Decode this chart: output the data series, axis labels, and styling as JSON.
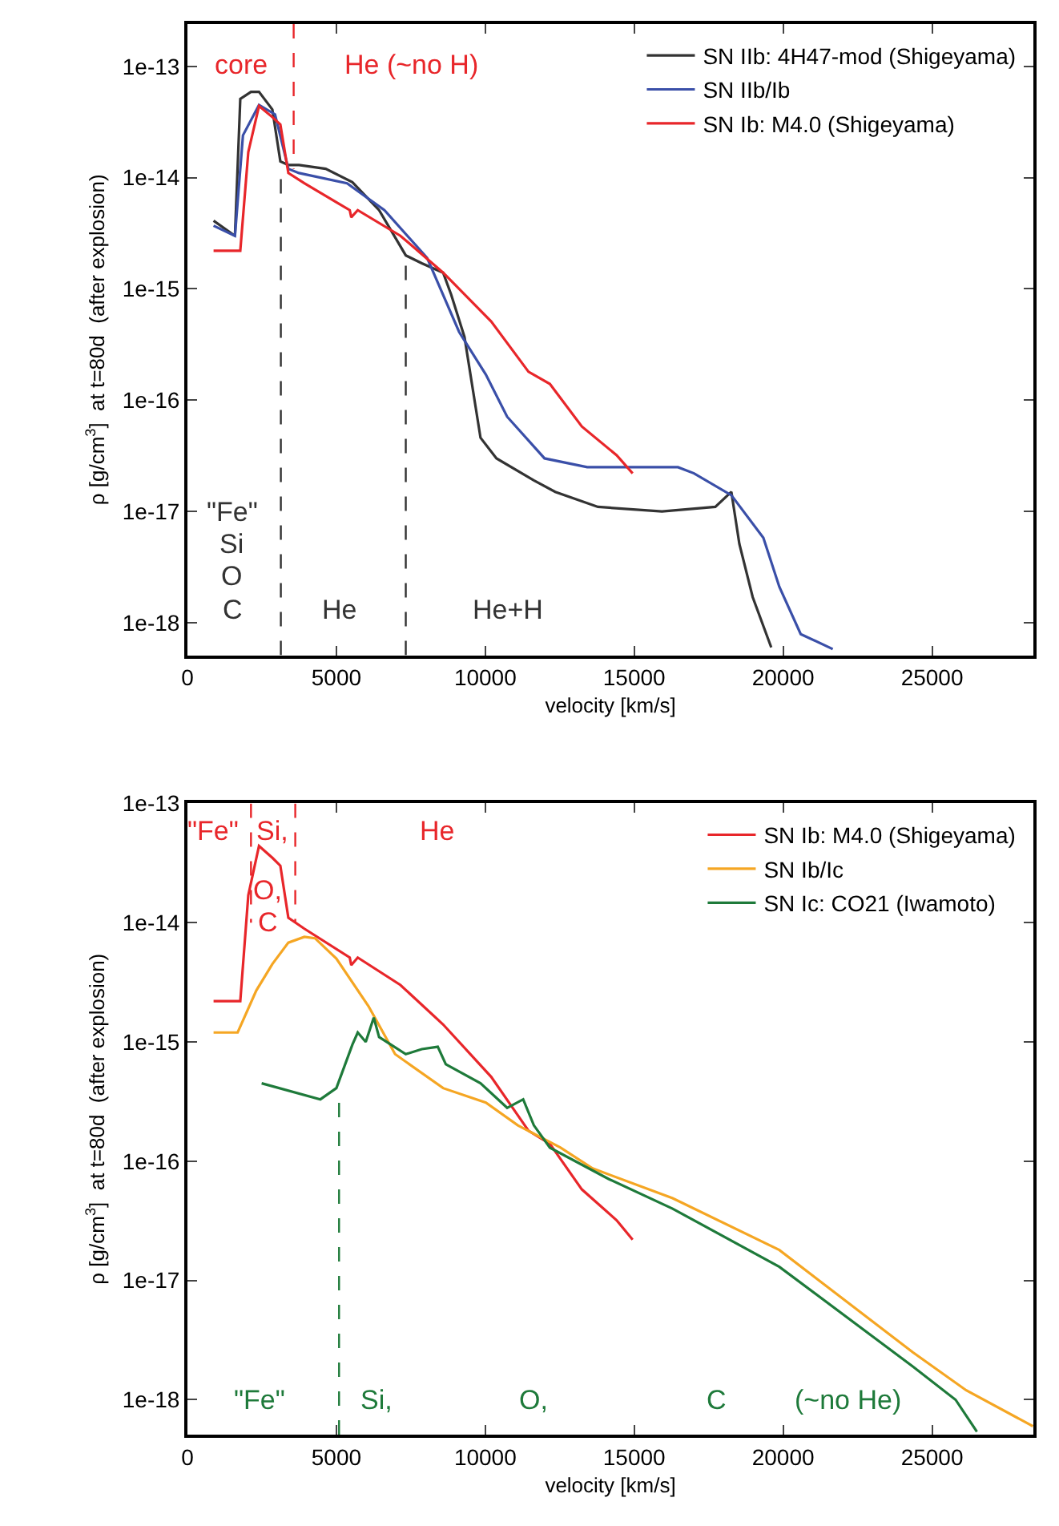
{
  "chart_data": [
    {
      "type": "line",
      "xlabel": "velocity [km/s]",
      "ylabel": "ρ [g/cm$^{3}$]  at t=80d  (after explosion)",
      "log": "y",
      "xlim": [
        0,
        28400
      ],
      "ylim": [
        5.1e-19,
        2.4e-13
      ],
      "xticks": [
        0,
        5000,
        10000,
        15000,
        20000,
        25000
      ],
      "yticks": [
        {
          "value": 1e-18,
          "label": "1e-18"
        },
        {
          "value": 1e-17,
          "label": "1e-17"
        },
        {
          "value": 1e-16,
          "label": "1e-16"
        },
        {
          "value": 1e-15,
          "label": "1e-15"
        },
        {
          "value": 1e-14,
          "label": "1e-14"
        },
        {
          "value": 1e-13,
          "label": "1e-13"
        }
      ],
      "legend": "top right",
      "marker": "none",
      "line_style": "solid",
      "series": [
        {
          "name": "SN IIb: 4H47-mod (Shigeyama)",
          "color": "#333333",
          "x": [
            877,
            1595,
            1774,
            2133,
            2402,
            2850,
            3119,
            3387,
            3745,
            4642,
            5538,
            6434,
            7330,
            7868,
            8584,
            8853,
            9301,
            9839,
            10376,
            11630,
            12348,
            13781,
            15930,
            17722,
            18261,
            18530,
            18977,
            19600
          ],
          "values": [
            4.1e-15,
            3e-15,
            5.1e-14,
            5.9e-14,
            5.9e-14,
            4.1e-14,
            1.4e-14,
            1.3e-14,
            1.3e-14,
            1.2e-14,
            9.1e-15,
            5.1e-15,
            2e-15,
            1.7e-15,
            1.4e-15,
            8.9e-16,
            3.7e-16,
            4.6e-17,
            3e-17,
            1.9e-17,
            1.5e-17,
            1.1e-17,
            1e-17,
            1.1e-17,
            1.5e-17,
            5.1e-18,
            1.7e-18,
            6e-19
          ]
        },
        {
          "name": "SN IIb/Ib",
          "color": "#3a4fa8",
          "x": [
            877,
            1595,
            1864,
            2402,
            2940,
            3387,
            3745,
            5359,
            6613,
            8047,
            9122,
            10018,
            10734,
            11988,
            13421,
            16469,
            17006,
            18261,
            19335,
            19872,
            20590,
            21665
          ],
          "values": [
            3.7e-15,
            3e-15,
            2.4e-14,
            4.5e-14,
            3.7e-14,
            1.2e-14,
            1.1e-14,
            8.9e-15,
            5.1e-15,
            1.9e-15,
            4.1e-16,
            1.7e-16,
            7.1e-17,
            3e-17,
            2.5e-17,
            2.5e-17,
            2.2e-17,
            1.4e-17,
            5.8e-18,
            2.1e-18,
            7.9e-19,
            5.8e-19
          ]
        },
        {
          "name": "SN Ib: M4.0 (Shigeyama)",
          "color": "#e8262a",
          "x": [
            877,
            1774,
            2043,
            2402,
            2850,
            3119,
            3387,
            3925,
            5448,
            5500,
            5717,
            7150,
            8584,
            10197,
            11451,
            12168,
            13242,
            14408,
            14946
          ],
          "values": [
            2.2e-15,
            2.2e-15,
            1.7e-14,
            4.4e-14,
            3.5e-14,
            3e-14,
            1.1e-14,
            8.9e-15,
            5.1e-15,
            4.4e-15,
            5.1e-15,
            3e-15,
            1.4e-15,
            5.1e-16,
            1.8e-16,
            1.4e-16,
            5.8e-17,
            3.2e-17,
            2.2e-17
          ]
        },
        {
          "color": "#333333",
          "line_style": "dashed",
          "x": [
            3136,
            3136
          ],
          "values": [
            5.1e-19,
            1.3e-14
          ]
        },
        {
          "color": "#333333",
          "line_style": "dashed",
          "x": [
            7330,
            7330
          ],
          "values": [
            5.1e-19,
            2e-15
          ]
        },
        {
          "color": "#e8262a",
          "line_style": "dashed",
          "x": [
            3566,
            3566
          ],
          "values": [
            2.4e-13,
            1.2e-14
          ]
        }
      ],
      "annotations": [
        "core",
        "He (~no H)",
        "\"Fe\"",
        "Si",
        "O",
        "C",
        "He",
        "He+H"
      ]
    },
    {
      "type": "line",
      "xlabel": "velocity [km/s]",
      "ylabel": "ρ [g/cm$^{3}$]  at t=80d  (after explosion)",
      "log": "y",
      "xlim": [
        0,
        28400
      ],
      "ylim": [
        5.1e-19,
        1e-13
      ],
      "xticks": [
        0,
        5000,
        10000,
        15000,
        20000,
        25000
      ],
      "yticks": [
        {
          "value": 1e-18,
          "label": "1e-18"
        },
        {
          "value": 1e-17,
          "label": "1e-17"
        },
        {
          "value": 1e-16,
          "label": "1e-16"
        },
        {
          "value": 1e-15,
          "label": "1e-15"
        },
        {
          "value": 1e-14,
          "label": "1e-14"
        },
        {
          "value": 1e-13,
          "label": "1e-13"
        }
      ],
      "legend": "top right",
      "marker": "none",
      "line_style": "solid",
      "series": [
        {
          "name": "SN Ib: M4.0 (Shigeyama)",
          "color": "#e8262a",
          "x": [
            877,
            1774,
            2043,
            2402,
            2850,
            3119,
            3387,
            3925,
            5448,
            5500,
            5717,
            7150,
            8584,
            10197,
            11451,
            12168,
            13242,
            14408,
            14946
          ],
          "values": [
            2.2e-15,
            2.2e-15,
            1.7e-14,
            4.4e-14,
            3.5e-14,
            3e-14,
            1.1e-14,
            8.9e-15,
            5.1e-15,
            4.4e-15,
            5.1e-15,
            3e-15,
            1.4e-15,
            5.1e-16,
            1.8e-16,
            1.4e-16,
            5.8e-17,
            3.2e-17,
            2.2e-17
          ]
        },
        {
          "name": "SN Ib/Ic",
          "color": "#f5a623",
          "x": [
            877,
            1685,
            2312,
            2850,
            3387,
            3925,
            4283,
            5000,
            6076,
            6971,
            8584,
            10018,
            11093,
            12526,
            13601,
            16289,
            19872,
            24353,
            26147,
            28385
          ],
          "values": [
            1.2e-15,
            1.2e-15,
            2.7e-15,
            4.5e-15,
            6.8e-15,
            7.6e-15,
            7.4e-15,
            5e-15,
            2e-15,
            7.9e-16,
            4.1e-16,
            3.1e-16,
            2e-16,
            1.3e-16,
            8.7e-17,
            4.9e-17,
            1.8e-17,
            2.5e-18,
            1.2e-18,
            6e-19
          ]
        },
        {
          "name": "SN Ic: CO21 (Iwamoto)",
          "color": "#1e7a3a",
          "x": [
            2491,
            4462,
            5000,
            5538,
            5717,
            5986,
            6255,
            6434,
            7330,
            7868,
            8405,
            8674,
            9839,
            10734,
            11272,
            11630,
            12168,
            14138,
            16289,
            19872,
            24353,
            25789,
            26504
          ],
          "values": [
            4.5e-16,
            3.3e-16,
            4.1e-16,
            9.5e-16,
            1.2e-15,
            1e-15,
            1.6e-15,
            1.1e-15,
            7.9e-16,
            8.7e-16,
            9.1e-16,
            6.5e-16,
            4.5e-16,
            2.8e-16,
            3.3e-16,
            2e-16,
            1.3e-16,
            7.1e-17,
            4e-17,
            1.3e-17,
            1.9e-18,
            1e-18,
            5.4e-19
          ]
        },
        {
          "color": "#e8262a",
          "line_style": "dashed",
          "x": [
            2133,
            2133
          ],
          "values": [
            1e-13,
            1e-14
          ]
        },
        {
          "color": "#e8262a",
          "line_style": "dashed",
          "x": [
            3620,
            3620
          ],
          "values": [
            1e-13,
            1e-14
          ]
        },
        {
          "color": "#1e7a3a",
          "line_style": "dashed",
          "x": [
            5090,
            5090
          ],
          "values": [
            5.1e-19,
            4e-16
          ]
        }
      ],
      "annotations": [
        "\"Fe\"",
        "Si,",
        "O,",
        "C",
        "He",
        "\"Fe\"",
        "Si,",
        "O,",
        "C",
        "(~no He)"
      ]
    }
  ]
}
